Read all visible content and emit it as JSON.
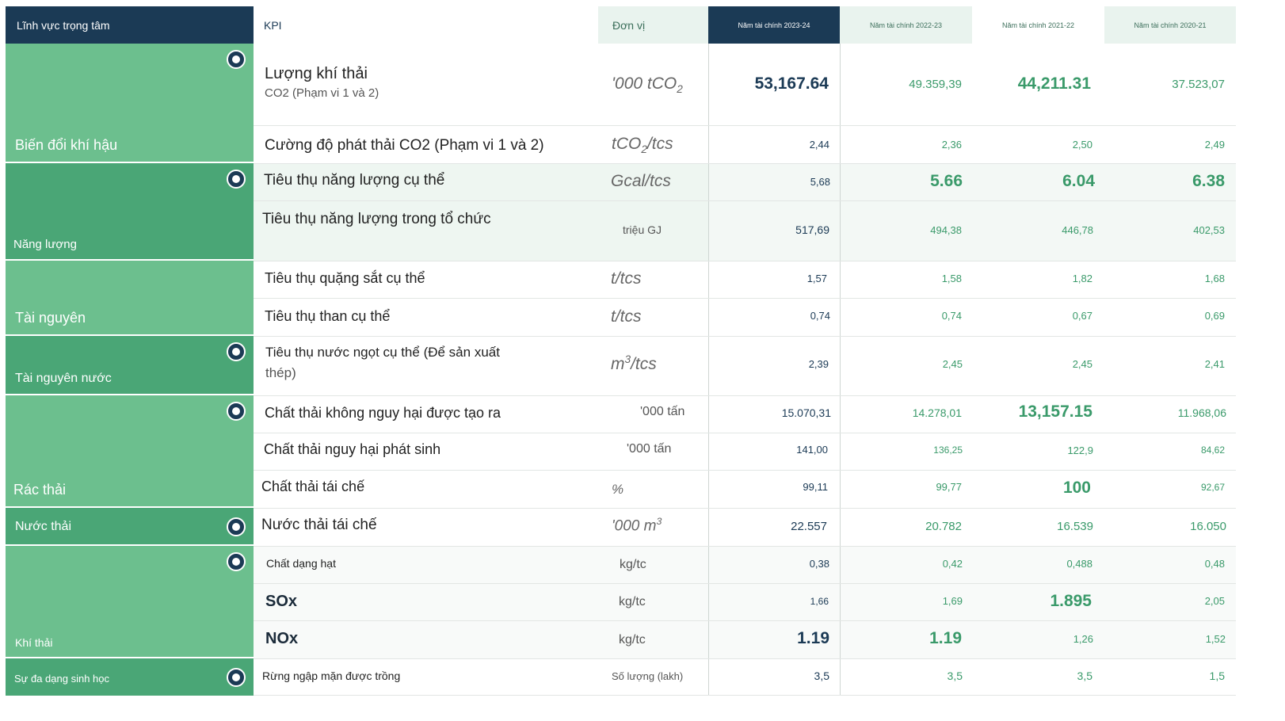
{
  "header": {
    "focus_area": "Lĩnh vực trọng tâm",
    "kpi": "KPI",
    "unit": "Đơn vị",
    "fy2324": "Năm tài chính 2023-24",
    "fy2223": "Năm tài chính 2022-23",
    "fy2122": "Năm tài chính 2021-22",
    "fy2021": "Năm tài chính 2020-21"
  },
  "categories": [
    {
      "label": "Biến đổi khí hậu"
    },
    {
      "label": "Năng lượng"
    },
    {
      "label": "Tài nguyên"
    },
    {
      "label": "Tài nguyên nước"
    },
    {
      "label": "Rác thải"
    },
    {
      "label": "Nước thải"
    },
    {
      "label": "Khí thải"
    },
    {
      "label": "Sự đa dạng sinh học"
    }
  ],
  "rows": [
    {
      "kpi": "Lượng khí thải",
      "kpi_sub": "CO2 (Phạm vi 1 và 2)",
      "unit_main": "'000 tCO",
      "unit_sub": "2",
      "v1": "53,167.64",
      "v2": "49.359,39",
      "v3": "44,211.31",
      "v4": "37.523,07"
    },
    {
      "kpi": "Cường độ phát thải CO2 (Phạm vi 1 và 2)",
      "unit_main": "tCO",
      "unit_sub": "2",
      "unit_tail": "/tcs",
      "v1": "2,44",
      "v2": "2,36",
      "v3": "2,50",
      "v4": "2,49"
    },
    {
      "kpi": "Tiêu thụ năng lượng cụ thể",
      "unit_main": "Gcal/tcs",
      "v1": "5,68",
      "v2": "5.66",
      "v3": "6.04",
      "v4": "6.38"
    },
    {
      "kpi": "Tiêu thụ năng lượng trong tổ chức",
      "unit_main": "triệu GJ",
      "v1": "517,69",
      "v2": "494,38",
      "v3": "446,78",
      "v4": "402,53"
    },
    {
      "kpi": "Tiêu thụ quặng sắt cụ thể",
      "unit_main": "t/tcs",
      "v1": "1,57",
      "v2": "1,58",
      "v3": "1,82",
      "v4": "1,68"
    },
    {
      "kpi": "Tiêu thụ than cụ thể",
      "unit_main": "t/tcs",
      "v1": "0,74",
      "v2": "0,74",
      "v3": "0,67",
      "v4": "0,69"
    },
    {
      "kpi": "Tiêu thụ nước ngọt cụ thể (Để sản xuất",
      "kpi_sub": "thép)",
      "unit_main": "m",
      "unit_sup": "3",
      "unit_tail": "/tcs",
      "v1": "2,39",
      "v2": "2,45",
      "v3": "2,45",
      "v4": "2,41"
    },
    {
      "kpi": "Chất thải không nguy hại được tạo ra",
      "unit_main": "'000 tấn",
      "v1": "15.070,31",
      "v2": "14.278,01",
      "v3": "13,157.15",
      "v4": "11.968,06"
    },
    {
      "kpi": "Chất thải nguy hại phát sinh",
      "unit_main": "'000 tấn",
      "v1": "141,00",
      "v2": "136,25",
      "v3": "122,9",
      "v4": "84,62"
    },
    {
      "kpi": "Chất thải tái chế",
      "unit_main": "%",
      "v1": "99,11",
      "v2": "99,77",
      "v3": "100",
      "v4": "92,67"
    },
    {
      "kpi": "Nước thải tái chế",
      "unit_main": "'000 m",
      "unit_sup": "3",
      "v1": "22.557",
      "v2": "20.782",
      "v3": "16.539",
      "v4": "16.050"
    },
    {
      "kpi": "Chất dạng hạt",
      "unit_main": "kg/tc",
      "v1": "0,38",
      "v2": "0,42",
      "v3": "0,488",
      "v4": "0,48"
    },
    {
      "kpi": "SOx",
      "unit_main": "kg/tc",
      "v1": "1,66",
      "v2": "1,69",
      "v3": "1.895",
      "v4": "2,05"
    },
    {
      "kpi": "NOx",
      "unit_main": "kg/tc",
      "v1": "1.19",
      "v2": "1.19",
      "v3": "1,26",
      "v4": "1,52"
    },
    {
      "kpi": "Rừng ngập mặn được trồng",
      "unit_main": "Số lượng (lakh)",
      "v1": "3,5",
      "v2": "3,5",
      "v3": "3,5",
      "v4": "1,5"
    }
  ],
  "colors": {
    "navy": "#1b3a55",
    "green_light": "#6cbf8e",
    "green_dark": "#4aa676",
    "value_green": "#3a9a6a"
  }
}
